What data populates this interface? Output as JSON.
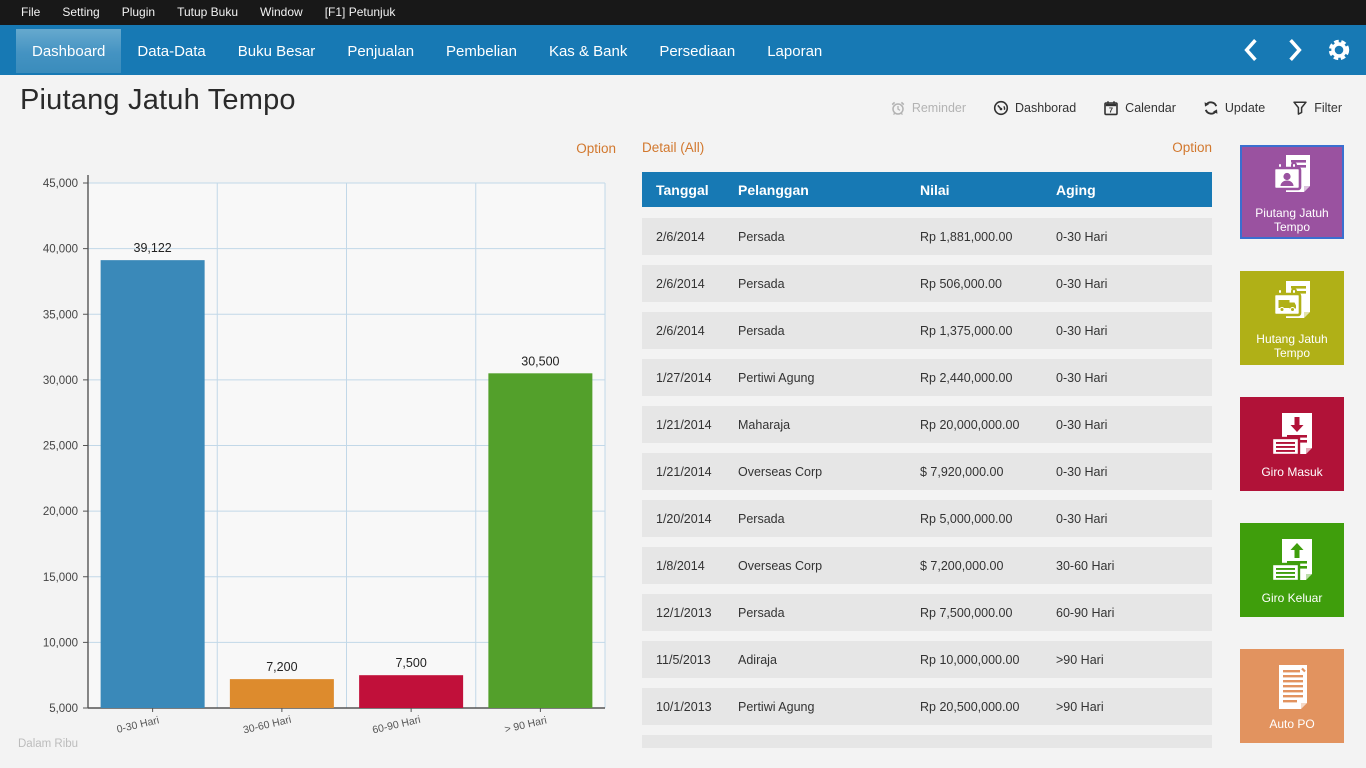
{
  "menubar": {
    "items": [
      "File",
      "Setting",
      "Plugin",
      "Tutup Buku",
      "Window",
      "[F1] Petunjuk"
    ]
  },
  "navbar": {
    "accent_color": "#1779b4",
    "tabs": [
      {
        "label": "Dashboard",
        "active": true
      },
      {
        "label": "Data-Data",
        "active": false
      },
      {
        "label": "Buku Besar",
        "active": false
      },
      {
        "label": "Penjualan",
        "active": false
      },
      {
        "label": "Pembelian",
        "active": false
      },
      {
        "label": "Kas & Bank",
        "active": false
      },
      {
        "label": "Persediaan",
        "active": false
      },
      {
        "label": "Laporan",
        "active": false
      }
    ]
  },
  "header": {
    "title": "Piutang Jatuh Tempo",
    "actions": [
      {
        "label": "Reminder",
        "disabled": true
      },
      {
        "label": "Dashborad",
        "disabled": false
      },
      {
        "label": "Calendar",
        "disabled": false
      },
      {
        "label": "Update",
        "disabled": false
      },
      {
        "label": "Filter",
        "disabled": false
      }
    ]
  },
  "chart_panel": {
    "option_label": "Option",
    "footnote": "Dalam Ribu"
  },
  "chart_data": {
    "type": "bar",
    "title": "",
    "categories": [
      "0-30 Hari",
      "30-60 Hari",
      "60-90 Hari",
      "> 90 Hari"
    ],
    "values": [
      39122,
      7200,
      7500,
      30500
    ],
    "value_labels": [
      "39,122",
      "7,200",
      "7,500",
      "30,500"
    ],
    "bar_colors": [
      "#3a89b9",
      "#dd8b2d",
      "#c1103a",
      "#53a02b"
    ],
    "ylim": [
      5000,
      45000
    ],
    "ytick_step": 5000,
    "grid": true,
    "gridline_color": "#c2d8e8",
    "unit_note": "Dalam Ribu",
    "legend": "none"
  },
  "table_panel": {
    "title": "Detail (All)",
    "option_label": "Option",
    "columns": [
      "Tanggal",
      "Pelanggan",
      "Nilai",
      "Aging"
    ],
    "rows": [
      [
        "2/6/2014",
        "Persada",
        "Rp 1,881,000.00",
        "0-30 Hari"
      ],
      [
        "2/6/2014",
        "Persada",
        "Rp 506,000.00",
        "0-30 Hari"
      ],
      [
        "2/6/2014",
        "Persada",
        "Rp 1,375,000.00",
        "0-30 Hari"
      ],
      [
        "1/27/2014",
        "Pertiwi Agung",
        "Rp 2,440,000.00",
        "0-30 Hari"
      ],
      [
        "1/21/2014",
        "Maharaja",
        "Rp 20,000,000.00",
        "0-30 Hari"
      ],
      [
        "1/21/2014",
        "Overseas Corp",
        "$ 7,920,000.00",
        "0-30 Hari"
      ],
      [
        "1/20/2014",
        "Persada",
        "Rp 5,000,000.00",
        "0-30 Hari"
      ],
      [
        "1/8/2014",
        "Overseas Corp",
        "$ 7,200,000.00",
        "30-60 Hari"
      ],
      [
        "12/1/2013",
        "Persada",
        "Rp 7,500,000.00",
        "60-90 Hari"
      ],
      [
        "11/5/2013",
        "Adiraja",
        "Rp 10,000,000.00",
        ">90 Hari"
      ],
      [
        "10/1/2013",
        "Pertiwi Agung",
        "Rp 20,500,000.00",
        ">90 Hari"
      ]
    ]
  },
  "tiles": [
    {
      "label": "Piutang Jatuh Tempo",
      "color": "#9a52a0",
      "selected": true
    },
    {
      "label": "Hutang Jatuh Tempo",
      "color": "#b0b017",
      "selected": false
    },
    {
      "label": "Giro Masuk",
      "color": "#b11238",
      "selected": false
    },
    {
      "label": "Giro Keluar",
      "color": "#3f9e0c",
      "selected": false
    },
    {
      "label": "Auto PO",
      "color": "#e2935f",
      "selected": false
    }
  ]
}
